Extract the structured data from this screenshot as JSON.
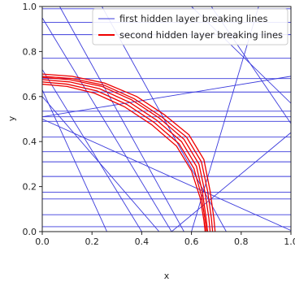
{
  "chart_data": {
    "type": "line",
    "title": "",
    "xlabel": "x",
    "ylabel": "y",
    "xlim": [
      0.0,
      1.0
    ],
    "ylim": [
      0.0,
      1.0
    ],
    "xticks": [
      "0.0",
      "0.2",
      "0.4",
      "0.6",
      "0.8",
      "1.0"
    ],
    "yticks": [
      "0.0",
      "0.2",
      "0.4",
      "0.6",
      "0.8",
      "1.0"
    ],
    "grid": false,
    "legend_position": "top-right",
    "colors": {
      "first": "#3b3bdc",
      "second": "#ee0000"
    },
    "legend": [
      {
        "label": "first hidden layer breaking lines",
        "color": "#3b3bdc"
      },
      {
        "label": "second hidden layer breaking lines",
        "color": "#ee0000"
      }
    ],
    "series": [
      {
        "name": "first hidden layer breaking lines",
        "color": "#3b3bdc",
        "lines": [
          [
            [
              0,
              0.022
            ],
            [
              1,
              0.022
            ]
          ],
          [
            [
              0,
              0.075
            ],
            [
              1,
              0.075
            ]
          ],
          [
            [
              0,
              0.145
            ],
            [
              1,
              0.145
            ]
          ],
          [
            [
              0,
              0.175
            ],
            [
              1,
              0.175
            ]
          ],
          [
            [
              0,
              0.245
            ],
            [
              1,
              0.245
            ]
          ],
          [
            [
              0,
              0.31
            ],
            [
              1,
              0.31
            ]
          ],
          [
            [
              0,
              0.355
            ],
            [
              1,
              0.355
            ]
          ],
          [
            [
              0,
              0.42
            ],
            [
              1,
              0.42
            ]
          ],
          [
            [
              0,
              0.49
            ],
            [
              1,
              0.49
            ]
          ],
          [
            [
              0,
              0.51
            ],
            [
              1,
              0.51
            ]
          ],
          [
            [
              0,
              0.535
            ],
            [
              1,
              0.535
            ]
          ],
          [
            [
              0,
              0.62
            ],
            [
              1,
              0.62
            ]
          ],
          [
            [
              0,
              0.68
            ],
            [
              1,
              0.68
            ]
          ],
          [
            [
              0,
              0.77
            ],
            [
              1,
              0.77
            ]
          ],
          [
            [
              0,
              0.875
            ],
            [
              1,
              0.875
            ]
          ],
          [
            [
              0,
              0.93
            ],
            [
              1,
              0.93
            ]
          ],
          [
            [
              0,
              0.99
            ],
            [
              1,
              0.99
            ]
          ],
          [
            [
              0,
              0.95
            ],
            [
              0.52,
              0
            ]
          ],
          [
            [
              0.07,
              1.0
            ],
            [
              0.57,
              0
            ]
          ],
          [
            [
              0,
              0.72
            ],
            [
              0.4,
              0
            ]
          ],
          [
            [
              0,
              0.63
            ],
            [
              0.26,
              0
            ]
          ],
          [
            [
              0,
              0.6
            ],
            [
              0.47,
              0
            ]
          ],
          [
            [
              0,
              0.51
            ],
            [
              1,
              0.69
            ]
          ],
          [
            [
              0.68,
              1.0
            ],
            [
              1,
              0.48
            ]
          ],
          [
            [
              0.6,
              1.0
            ],
            [
              1,
              0.57
            ]
          ],
          [
            [
              0.52,
              0
            ],
            [
              1,
              0.44
            ]
          ],
          [
            [
              0.6,
              0
            ],
            [
              0.87,
              1.0
            ]
          ],
          [
            [
              0,
              0.5
            ],
            [
              1,
              0.005
            ]
          ],
          [
            [
              0.24,
              1.0
            ],
            [
              0.74,
              0
            ]
          ]
        ]
      },
      {
        "name": "second hidden layer breaking lines",
        "color": "#ee0000",
        "curves": [
          [
            [
              0,
              0.7
            ],
            [
              0.12,
              0.69
            ],
            [
              0.25,
              0.66
            ],
            [
              0.38,
              0.6
            ],
            [
              0.49,
              0.52
            ],
            [
              0.59,
              0.43
            ],
            [
              0.65,
              0.32
            ],
            [
              0.675,
              0.18
            ],
            [
              0.69,
              0.06
            ],
            [
              0.695,
              0
            ]
          ],
          [
            [
              0,
              0.69
            ],
            [
              0.12,
              0.68
            ],
            [
              0.25,
              0.65
            ],
            [
              0.37,
              0.59
            ],
            [
              0.48,
              0.51
            ],
            [
              0.58,
              0.42
            ],
            [
              0.64,
              0.31
            ],
            [
              0.665,
              0.18
            ],
            [
              0.68,
              0.06
            ],
            [
              0.685,
              0
            ]
          ],
          [
            [
              0,
              0.685
            ],
            [
              0.11,
              0.675
            ],
            [
              0.24,
              0.645
            ],
            [
              0.36,
              0.585
            ],
            [
              0.47,
              0.505
            ],
            [
              0.57,
              0.41
            ],
            [
              0.63,
              0.3
            ],
            [
              0.655,
              0.17
            ],
            [
              0.67,
              0.06
            ],
            [
              0.675,
              0
            ]
          ],
          [
            [
              0,
              0.675
            ],
            [
              0.11,
              0.665
            ],
            [
              0.23,
              0.635
            ],
            [
              0.35,
              0.575
            ],
            [
              0.46,
              0.495
            ],
            [
              0.56,
              0.4
            ],
            [
              0.62,
              0.29
            ],
            [
              0.645,
              0.17
            ],
            [
              0.66,
              0.05
            ],
            [
              0.665,
              0
            ]
          ],
          [
            [
              0,
              0.665
            ],
            [
              0.1,
              0.655
            ],
            [
              0.22,
              0.625
            ],
            [
              0.34,
              0.565
            ],
            [
              0.45,
              0.485
            ],
            [
              0.55,
              0.39
            ],
            [
              0.61,
              0.28
            ],
            [
              0.64,
              0.16
            ],
            [
              0.655,
              0.05
            ],
            [
              0.66,
              0
            ]
          ],
          [
            [
              0,
              0.655
            ],
            [
              0.1,
              0.645
            ],
            [
              0.21,
              0.615
            ],
            [
              0.33,
              0.555
            ],
            [
              0.44,
              0.475
            ],
            [
              0.54,
              0.38
            ],
            [
              0.6,
              0.27
            ],
            [
              0.635,
              0.15
            ],
            [
              0.65,
              0.05
            ],
            [
              0.655,
              0
            ]
          ]
        ]
      }
    ]
  }
}
